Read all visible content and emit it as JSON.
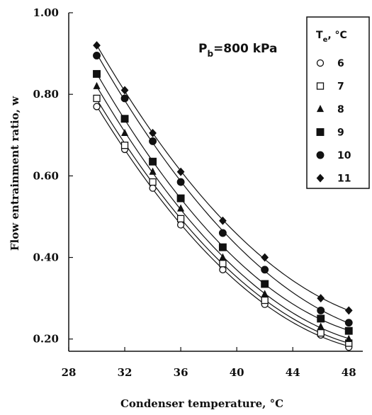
{
  "chart_data": {
    "type": "scatter",
    "xlabel": "Condenser temperature, °C",
    "ylabel": "Flow entrainment ratio, w",
    "xlim": [
      28,
      49
    ],
    "ylim": [
      0.17,
      1.0
    ],
    "xticks": [
      "28",
      "32",
      "36",
      "40",
      "44",
      "48"
    ],
    "yticks": [
      "0.20",
      "0.40",
      "0.60",
      "0.80",
      "1.00"
    ],
    "annotation": "P_b=800 kPa",
    "annotation_main": "P",
    "annotation_sub": "b",
    "annotation_rest": "=800 kPa",
    "legend_title_main": "T",
    "legend_title_sub": "e",
    "legend_title_rest": ", °C",
    "legend_position": "top-right",
    "grid": false,
    "x": [
      30,
      32,
      34,
      36,
      39,
      42,
      46,
      48
    ],
    "series": [
      {
        "name": "6",
        "marker": "open-circle",
        "values": [
          0.77,
          0.665,
          0.57,
          0.48,
          0.37,
          0.285,
          0.21,
          0.18
        ]
      },
      {
        "name": "7",
        "marker": "open-square",
        "values": [
          0.79,
          0.675,
          0.585,
          0.495,
          0.385,
          0.295,
          0.215,
          0.19
        ]
      },
      {
        "name": "8",
        "marker": "filled-triangle",
        "values": [
          0.82,
          0.705,
          0.61,
          0.52,
          0.4,
          0.31,
          0.23,
          0.2
        ]
      },
      {
        "name": "9",
        "marker": "filled-square",
        "values": [
          0.85,
          0.74,
          0.635,
          0.545,
          0.425,
          0.335,
          0.25,
          0.22
        ]
      },
      {
        "name": "10",
        "marker": "filled-circle",
        "values": [
          0.895,
          0.79,
          0.685,
          0.585,
          0.46,
          0.37,
          0.27,
          0.24
        ]
      },
      {
        "name": "11",
        "marker": "filled-diamond",
        "values": [
          0.92,
          0.81,
          0.705,
          0.61,
          0.49,
          0.4,
          0.3,
          0.27
        ]
      }
    ]
  }
}
